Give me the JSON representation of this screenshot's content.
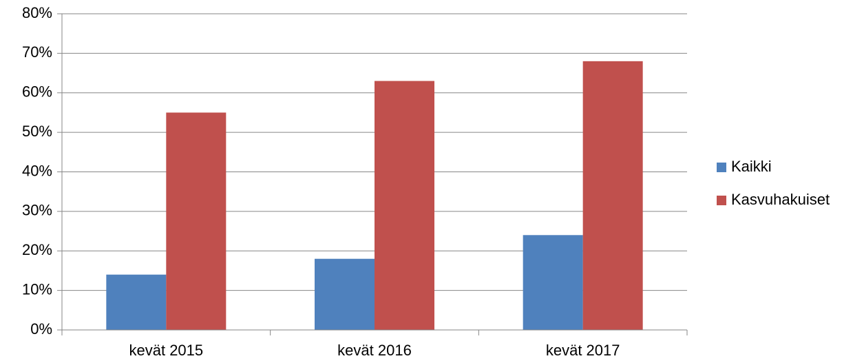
{
  "chart_data": {
    "type": "bar",
    "categories": [
      "kevät 2015",
      "kevät 2016",
      "kevät 2017"
    ],
    "series": [
      {
        "name": "Kaikki",
        "color": "#4f81bd",
        "values": [
          14,
          18,
          24
        ]
      },
      {
        "name": "Kasvuhakuiset",
        "color": "#c0504d",
        "values": [
          55,
          63,
          68
        ]
      }
    ],
    "ylim": [
      0,
      80
    ],
    "yticks": [
      {
        "value": 0,
        "label": "0%"
      },
      {
        "value": 10,
        "label": "10%"
      },
      {
        "value": 20,
        "label": "20%"
      },
      {
        "value": 30,
        "label": "30%"
      },
      {
        "value": 40,
        "label": "40%"
      },
      {
        "value": 50,
        "label": "50%"
      },
      {
        "value": 60,
        "label": "60%"
      },
      {
        "value": 70,
        "label": "70%"
      },
      {
        "value": 80,
        "label": "80%"
      }
    ],
    "grid": true,
    "legend": "right"
  }
}
